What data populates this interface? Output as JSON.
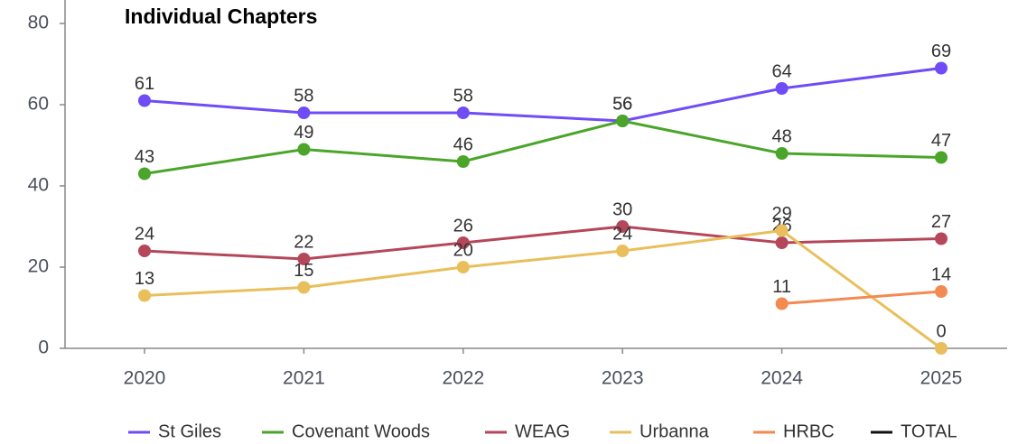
{
  "chart_data": {
    "type": "line",
    "title": "Individual Chapters",
    "categories": [
      "2020",
      "2021",
      "2022",
      "2023",
      "2024",
      "2025"
    ],
    "series": [
      {
        "name": "St Giles",
        "color": "#6f4cf6",
        "values": [
          61,
          58,
          58,
          56,
          64,
          69
        ]
      },
      {
        "name": "Covenant Woods",
        "color": "#4aa52a",
        "values": [
          43,
          49,
          46,
          56,
          48,
          47
        ]
      },
      {
        "name": "WEAG",
        "color": "#b5475a",
        "values": [
          24,
          22,
          26,
          30,
          26,
          27
        ]
      },
      {
        "name": "Urbanna",
        "color": "#e9bf5c",
        "values": [
          13,
          15,
          20,
          24,
          29,
          0
        ]
      },
      {
        "name": "HRBC",
        "color": "#f28a52",
        "values": [
          null,
          null,
          null,
          null,
          11,
          14
        ]
      },
      {
        "name": "TOTAL",
        "color": "#111111",
        "values": [
          null,
          null,
          null,
          null,
          null,
          null
        ]
      }
    ],
    "ylim": [
      0,
      80
    ],
    "yticks": [
      0,
      20,
      40,
      60,
      80
    ],
    "legend": "bottom"
  }
}
